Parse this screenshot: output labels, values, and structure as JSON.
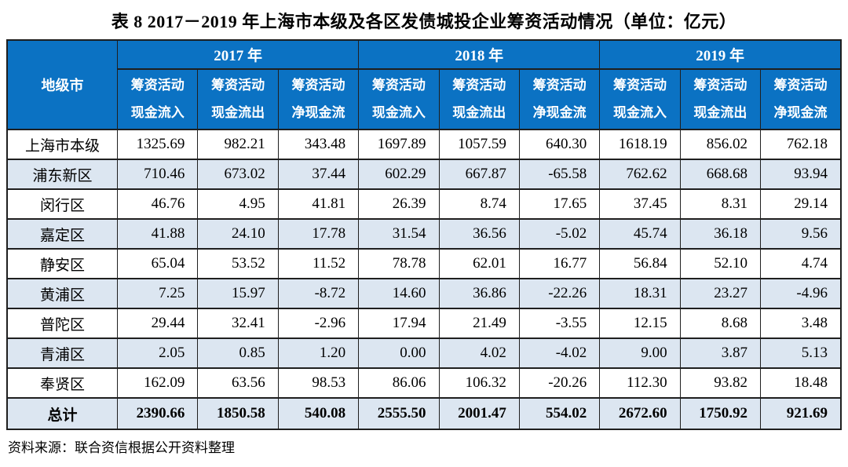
{
  "title": "表 8  2017－2019 年上海市本级及各区发债城投企业筹资活动情况（单位：亿元）",
  "source_note": "资料来源：联合资信根据公开资料整理",
  "colors": {
    "header_bg": "#0b72c3",
    "header_text": "#ffffff",
    "alt_row_bg": "#dce6f1",
    "border": "#1f1f1f"
  },
  "table": {
    "region_header": "地级市",
    "year_headers": [
      "2017 年",
      "2018 年",
      "2019 年"
    ],
    "metric_headers": [
      "筹资活动\n现金流入",
      "筹资活动\n现金流出",
      "筹资活动\n净现金流"
    ],
    "rows": [
      {
        "region": "上海市本级",
        "values": [
          "1325.69",
          "982.21",
          "343.48",
          "1697.89",
          "1057.59",
          "640.30",
          "1618.19",
          "856.02",
          "762.18"
        ]
      },
      {
        "region": "浦东新区",
        "values": [
          "710.46",
          "673.02",
          "37.44",
          "602.29",
          "667.87",
          "-65.58",
          "762.62",
          "668.68",
          "93.94"
        ]
      },
      {
        "region": "闵行区",
        "values": [
          "46.76",
          "4.95",
          "41.81",
          "26.39",
          "8.74",
          "17.65",
          "37.45",
          "8.31",
          "29.14"
        ]
      },
      {
        "region": "嘉定区",
        "values": [
          "41.88",
          "24.10",
          "17.78",
          "31.54",
          "36.56",
          "-5.02",
          "45.74",
          "36.18",
          "9.56"
        ]
      },
      {
        "region": "静安区",
        "values": [
          "65.04",
          "53.52",
          "11.52",
          "78.78",
          "62.01",
          "16.77",
          "56.84",
          "52.10",
          "4.74"
        ]
      },
      {
        "region": "黄浦区",
        "values": [
          "7.25",
          "15.97",
          "-8.72",
          "14.60",
          "36.86",
          "-22.26",
          "18.31",
          "23.27",
          "-4.96"
        ]
      },
      {
        "region": "普陀区",
        "values": [
          "29.44",
          "32.41",
          "-2.96",
          "17.94",
          "21.49",
          "-3.55",
          "12.15",
          "8.68",
          "3.48"
        ]
      },
      {
        "region": "青浦区",
        "values": [
          "2.05",
          "0.85",
          "1.20",
          "0.00",
          "4.02",
          "-4.02",
          "9.00",
          "3.87",
          "5.13"
        ]
      },
      {
        "region": "奉贤区",
        "values": [
          "162.09",
          "63.56",
          "98.53",
          "86.06",
          "106.32",
          "-20.26",
          "112.30",
          "93.82",
          "18.48"
        ]
      }
    ],
    "total_row": {
      "region": "总计",
      "values": [
        "2390.66",
        "1850.58",
        "540.08",
        "2555.50",
        "2001.47",
        "554.02",
        "2672.60",
        "1750.92",
        "921.69"
      ]
    }
  }
}
